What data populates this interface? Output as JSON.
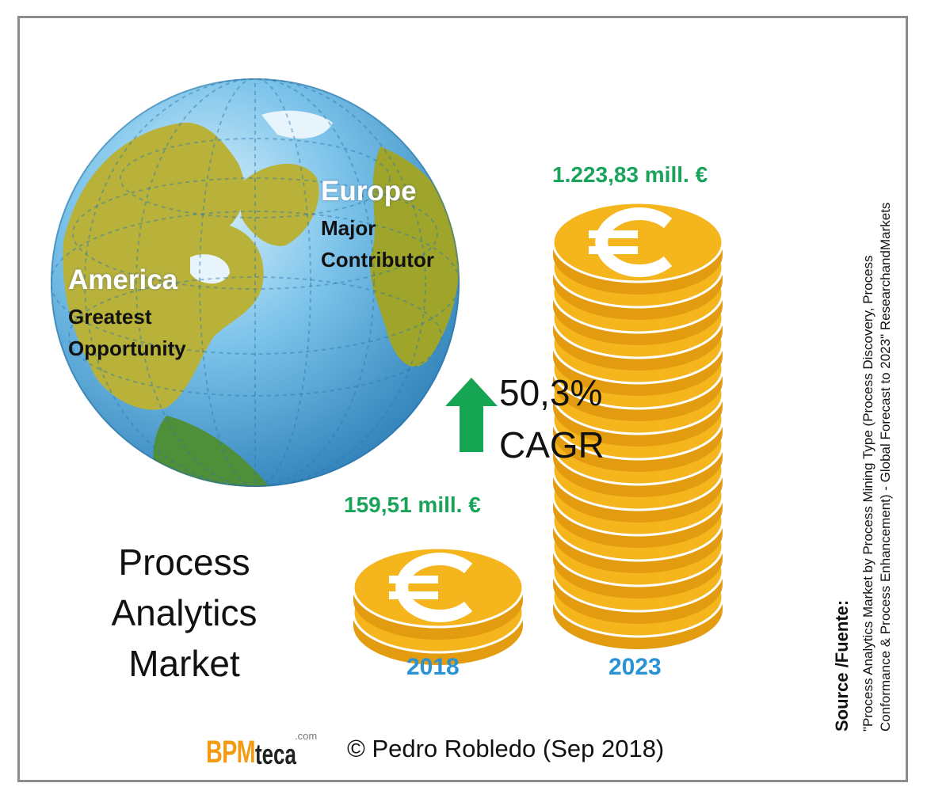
{
  "chart_data": {
    "type": "bar",
    "title": "Process Analytics Market",
    "categories": [
      "2018",
      "2023"
    ],
    "values": [
      159.51,
      1223.83
    ],
    "value_labels": [
      "159,51 mill. €",
      "1.223,83 mill. €"
    ],
    "unit": "mill. €",
    "annotation": {
      "value": "50,3%",
      "label": "CAGR"
    },
    "regions": [
      {
        "name": "Europe",
        "description": [
          "Major",
          "Contributor"
        ]
      },
      {
        "name": "America",
        "description": [
          "Greatest",
          "Opportunity"
        ]
      }
    ]
  },
  "title_lines": [
    "Process",
    "Analytics",
    "Market"
  ],
  "footer": {
    "logo_bpm": "BPM",
    "logo_teca": "teca",
    "logo_com": ".com",
    "copyright": "© Pedro Robledo (Sep 2018)"
  },
  "source": {
    "title": "Source /Fuente:",
    "line1": "\"Process Analytics Market by Process Mining Type (Process Discovery, Process",
    "line2": "Conformance & Process Enhancement) - Global Forecast to 2023\" ResearchandMarkets"
  },
  "colors": {
    "coin": "#f5b51d",
    "coin_dark": "#e39c10",
    "value_green": "#1aa35a",
    "year_blue": "#2a93d5",
    "arrow_green": "#16a553",
    "ocean": "#4aa3d8",
    "land": "#b8b53a"
  }
}
